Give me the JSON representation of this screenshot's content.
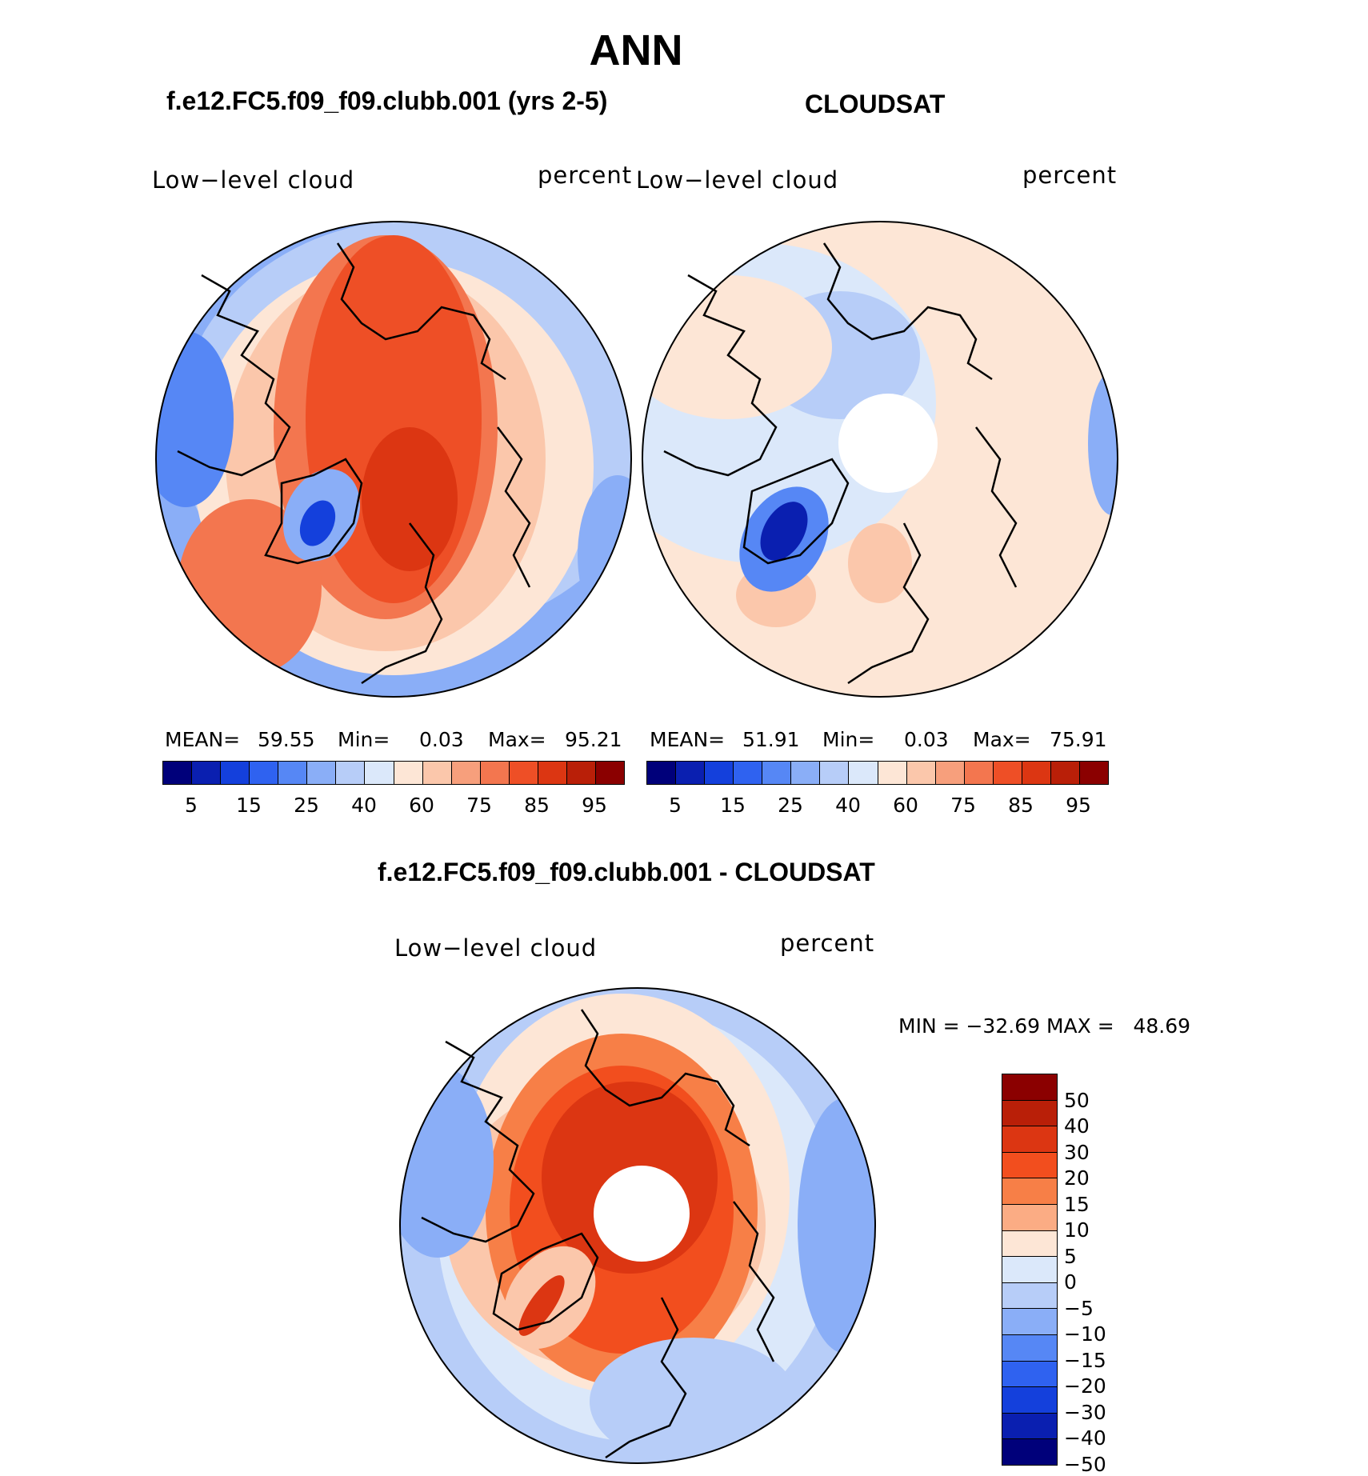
{
  "title": "ANN",
  "panels": [
    {
      "id": "model",
      "header": "f.e12.FC5.f09_f09.clubb.001 (yrs 2-5)",
      "variable": "Low−level cloud",
      "units": "percent",
      "mean_label": "MEAN=",
      "mean": "59.55",
      "min_label": "Min=",
      "min": "0.03",
      "max_label": "Max=",
      "max": "95.21",
      "polar_hole": false
    },
    {
      "id": "obs",
      "header": "CLOUDSAT",
      "variable": "Low−level cloud",
      "units": "percent",
      "mean_label": "MEAN=",
      "mean": "51.91",
      "min_label": "Min=",
      "min": "0.03",
      "max_label": "Max=",
      "max": "75.91",
      "polar_hole": true
    }
  ],
  "abs_colorbar": {
    "colors": [
      "#00007a",
      "#0a1fb0",
      "#1440dc",
      "#2f62f0",
      "#5687f5",
      "#8aaef7",
      "#b7cdf8",
      "#dbe8fa",
      "#fde6d6",
      "#fbc7ab",
      "#f79f7c",
      "#f3764f",
      "#ee4f26",
      "#dc3612",
      "#b91f08",
      "#8b0000"
    ],
    "ticks": [
      "5",
      "15",
      "25",
      "40",
      "60",
      "75",
      "85",
      "95"
    ]
  },
  "diff_panel": {
    "header": "f.e12.FC5.f09_f09.clubb.001 - CLOUDSAT",
    "variable": "Low−level cloud",
    "units": "percent",
    "minmax_text": "MIN = −32.69 MAX =   48.69",
    "polar_hole": true
  },
  "diff_colorbar": {
    "colors": [
      "#8b0000",
      "#b91f08",
      "#dc3612",
      "#f24e1e",
      "#f77f47",
      "#fbac84",
      "#fde6d6",
      "#dbe8fa",
      "#b7cdf8",
      "#8aaef7",
      "#5687f5",
      "#2f62f0",
      "#1440dc",
      "#0a1fb0",
      "#00007a"
    ],
    "labels": [
      "50",
      "40",
      "30",
      "20",
      "15",
      "10",
      "5",
      "0",
      "−5",
      "−10",
      "−15",
      "−20",
      "−30",
      "−40",
      "−50"
    ]
  }
}
